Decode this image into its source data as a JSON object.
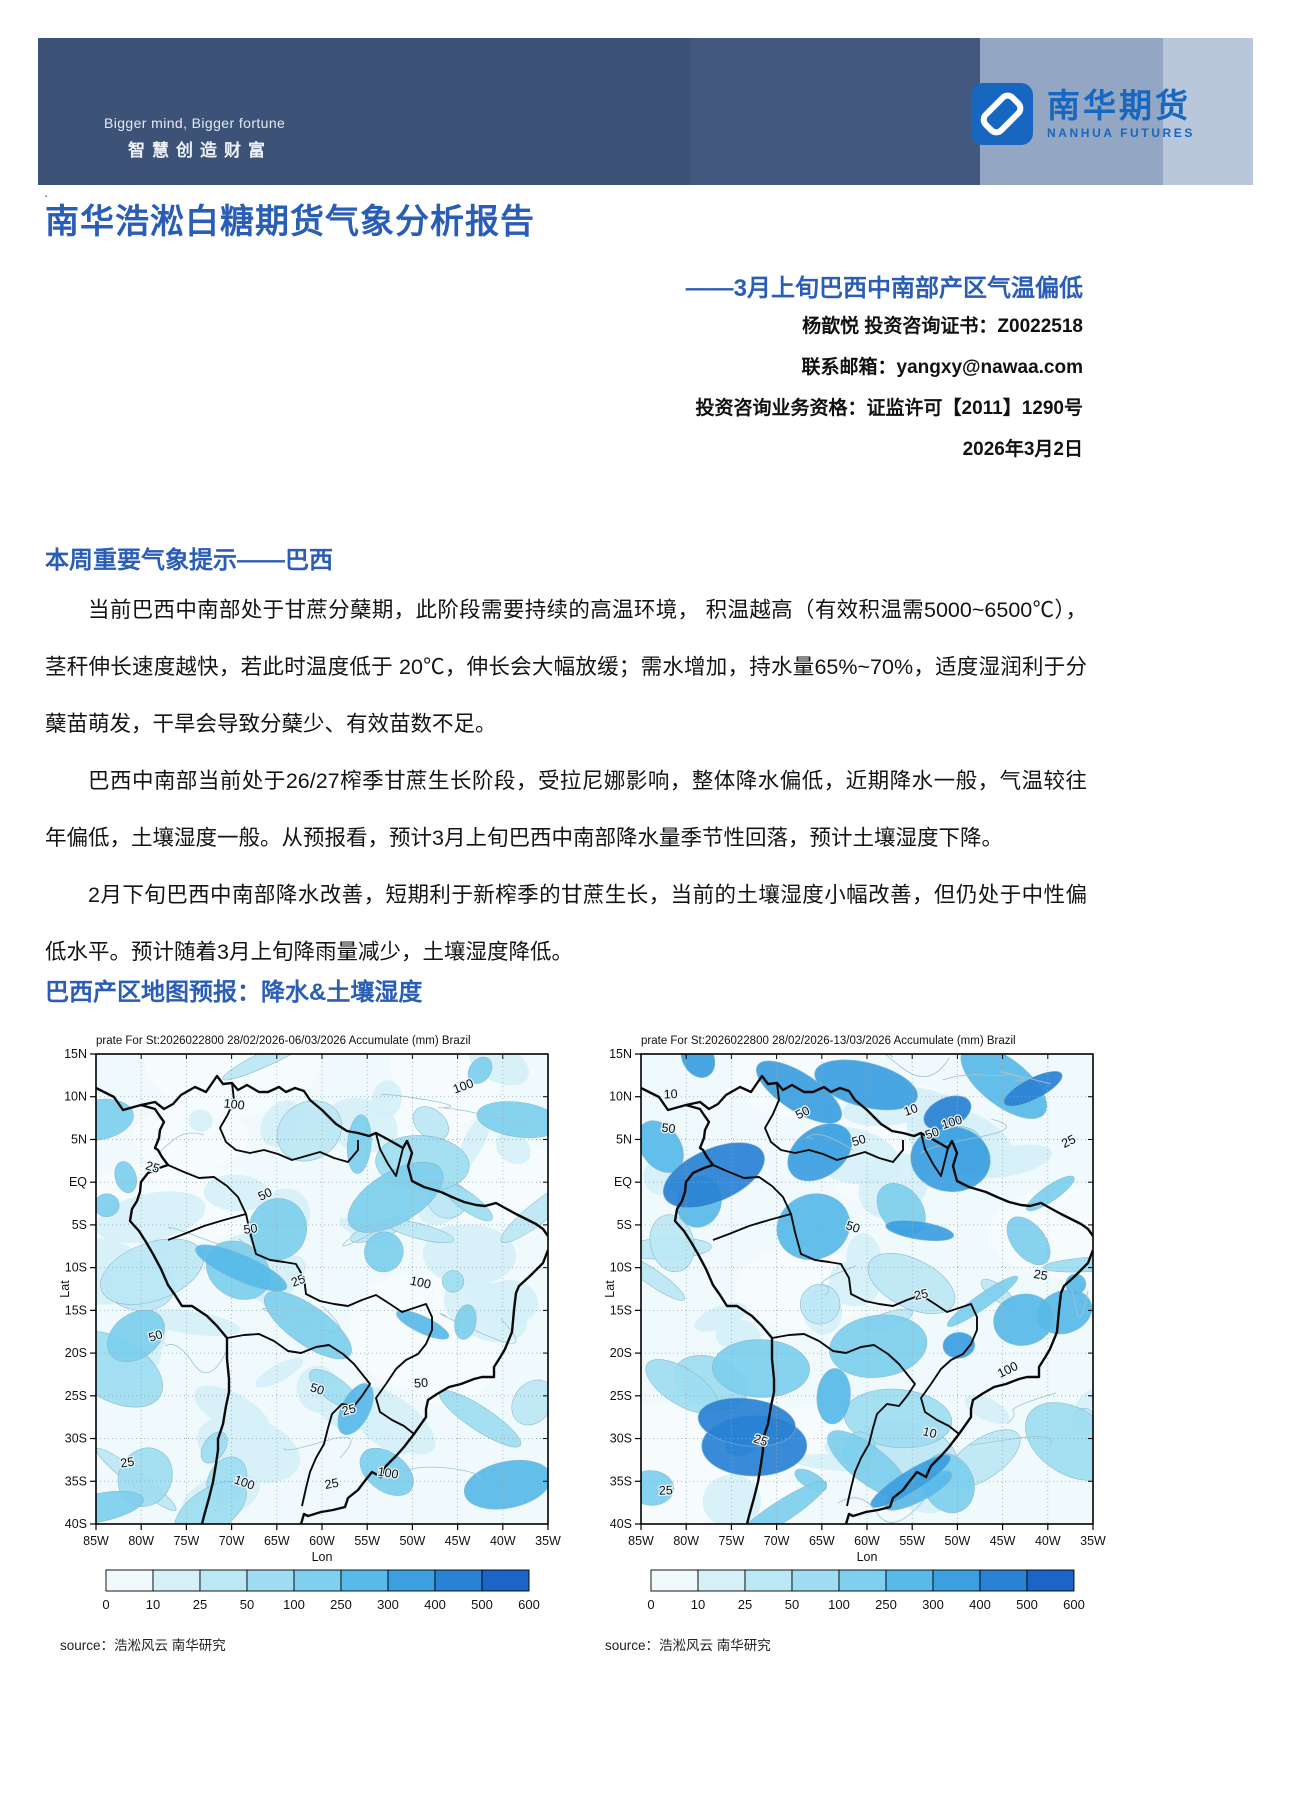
{
  "banner": {
    "tagline_en": "Bigger mind, Bigger fortune",
    "tagline_zh": "智慧创造财富",
    "logo_zh": "南华期货",
    "logo_en": "NANHUA FUTURES",
    "logo_color": "#1766bf",
    "banner_color": "#3d5277"
  },
  "stray_dot": "·",
  "report": {
    "title": "南华浩淞白糖期货气象分析报告",
    "subtitle": "——3月上旬巴西中南部产区气温偏低",
    "analyst": "杨歆悦 投资咨询证书：Z0022518",
    "contact": "联系邮箱：yangxy@nawaa.com",
    "qualification": "投资咨询业务资格：证监许可【2011】1290号",
    "date": "2026年3月2日"
  },
  "section1": {
    "heading": "本周重要气象提示——巴西",
    "paragraphs": [
      "当前巴西中南部处于甘蔗分蘖期，此阶段需要持续的高温环境， 积温越高（有效积温需5000~6500℃），茎秆伸长速度越快，若此时温度低于 20℃，伸长会大幅放缓；需水增加，持水量65%~70%，适度湿润利于分蘖苗萌发，干旱会导致分蘖少、有效苗数不足。",
      "巴西中南部当前处于26/27榨季甘蔗生长阶段，受拉尼娜影响，整体降水偏低，近期降水一般，气温较往年偏低，土壤湿度一般。从预报看，预计3月上旬巴西中南部降水量季节性回落，预计土壤湿度下降。",
      "2月下旬巴西中南部降水改善，短期利于新榨季的甘蔗生长，当前的土壤湿度小幅改善，但仍处于中性偏低水平。预计随着3月上旬降雨量减少，土壤湿度降低。"
    ]
  },
  "section2": {
    "heading": "巴西产区地图预报：降水&土壤湿度"
  },
  "maps": {
    "source": "source：浩淞风云 南华研究",
    "xlabel": "Lon",
    "ylabel": "Lat",
    "yticks": [
      "15N",
      "10N",
      "5N",
      "EQ",
      "5S",
      "10S",
      "15S",
      "20S",
      "25S",
      "30S",
      "35S",
      "40S"
    ],
    "xticks": [
      "85W",
      "80W",
      "75W",
      "70W",
      "65W",
      "60W",
      "55W",
      "50W",
      "45W",
      "40W",
      "35W"
    ],
    "colorbar_values": [
      "0",
      "10",
      "25",
      "50",
      "100",
      "250",
      "300",
      "400",
      "500",
      "600"
    ],
    "colorbar_colors": [
      "#f0fafd",
      "#d6f0f8",
      "#bce8f5",
      "#9fdef2",
      "#7ed0ee",
      "#58bae9",
      "#3b9fe0",
      "#2a82d4",
      "#1c64c6"
    ],
    "contour_labels": [
      "10",
      "25",
      "50",
      "100"
    ],
    "items": [
      {
        "title": "prate For St:2026022800  28/02/2026-06/03/2026 Accumulate (mm) Brazil"
      },
      {
        "title": "prate For St:2026022800  28/02/2026-13/03/2026 Accumulate (mm) Brazil"
      }
    ]
  },
  "chart_data": [
    {
      "type": "heatmap",
      "title": "prate For St:2026022800  28/02/2026-06/03/2026 Accumulate (mm) Brazil",
      "xlabel": "Lon",
      "ylabel": "Lat",
      "x_ticks": [
        "85W",
        "80W",
        "75W",
        "70W",
        "65W",
        "60W",
        "55W",
        "50W",
        "45W",
        "40W",
        "35W"
      ],
      "y_ticks": [
        "15N",
        "10N",
        "5N",
        "EQ",
        "5S",
        "10S",
        "15S",
        "20S",
        "25S",
        "30S",
        "35S",
        "40S"
      ],
      "colorbar_levels_mm": [
        0,
        10,
        25,
        50,
        100,
        250,
        300,
        400,
        500,
        600
      ],
      "contour_labels_mm": [
        10,
        25,
        50,
        100
      ],
      "region": "South America (Brazil)",
      "legend_position": "bottom",
      "grid": true
    },
    {
      "type": "heatmap",
      "title": "prate For St:2026022800  28/02/2026-13/03/2026 Accumulate (mm) Brazil",
      "xlabel": "Lon",
      "ylabel": "Lat",
      "x_ticks": [
        "85W",
        "80W",
        "75W",
        "70W",
        "65W",
        "60W",
        "55W",
        "50W",
        "45W",
        "40W",
        "35W"
      ],
      "y_ticks": [
        "15N",
        "10N",
        "5N",
        "EQ",
        "5S",
        "10S",
        "15S",
        "20S",
        "25S",
        "30S",
        "35S",
        "40S"
      ],
      "colorbar_levels_mm": [
        0,
        10,
        25,
        50,
        100,
        250,
        300,
        400,
        500,
        600
      ],
      "contour_labels_mm": [
        10,
        25,
        50,
        100
      ],
      "region": "South America (Brazil)",
      "legend_position": "bottom",
      "grid": true
    }
  ]
}
